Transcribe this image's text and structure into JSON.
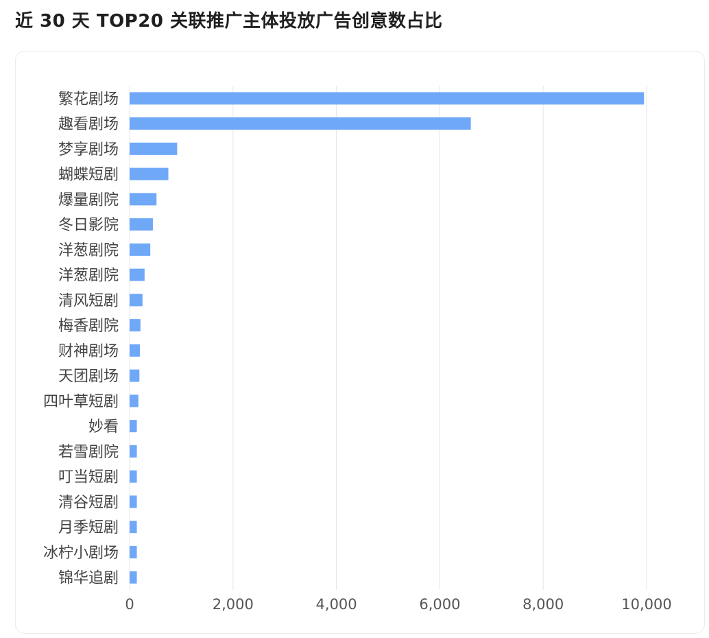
{
  "title": "近 30 天 TOP20 关联推广主体投放广告创意数占比",
  "chart_data": {
    "type": "bar",
    "orientation": "horizontal",
    "title": "近 30 天 TOP20 关联推广主体投放广告创意数占比",
    "xlabel": "",
    "ylabel": "",
    "xlim": [
      0,
      10000
    ],
    "xticks": [
      0,
      2000,
      4000,
      6000,
      8000,
      10000
    ],
    "xtick_labels": [
      "0",
      "2,000",
      "4,000",
      "6,000",
      "8,000",
      "10,000"
    ],
    "grid": true,
    "legend": "none",
    "bar_color": "#6fa8f7",
    "grid_color": "#e3e6ec",
    "categories": [
      "繁花剧场",
      "趣看剧场",
      "梦享剧场",
      "蝴蝶短剧",
      "爆量剧院",
      "冬日影院",
      "洋葱剧院",
      "洋葱剧院",
      "清风短剧",
      "梅香剧院",
      "财神剧场",
      "天团剧场",
      "四叶草短剧",
      "妙看",
      "若雪剧院",
      "叮当短剧",
      "清谷短剧",
      "月季短剧",
      "冰柠小剧场",
      "锦华追剧"
    ],
    "values": [
      9950,
      6600,
      920,
      750,
      520,
      450,
      400,
      290,
      250,
      210,
      200,
      190,
      170,
      140,
      140,
      140,
      140,
      140,
      140,
      140
    ]
  }
}
